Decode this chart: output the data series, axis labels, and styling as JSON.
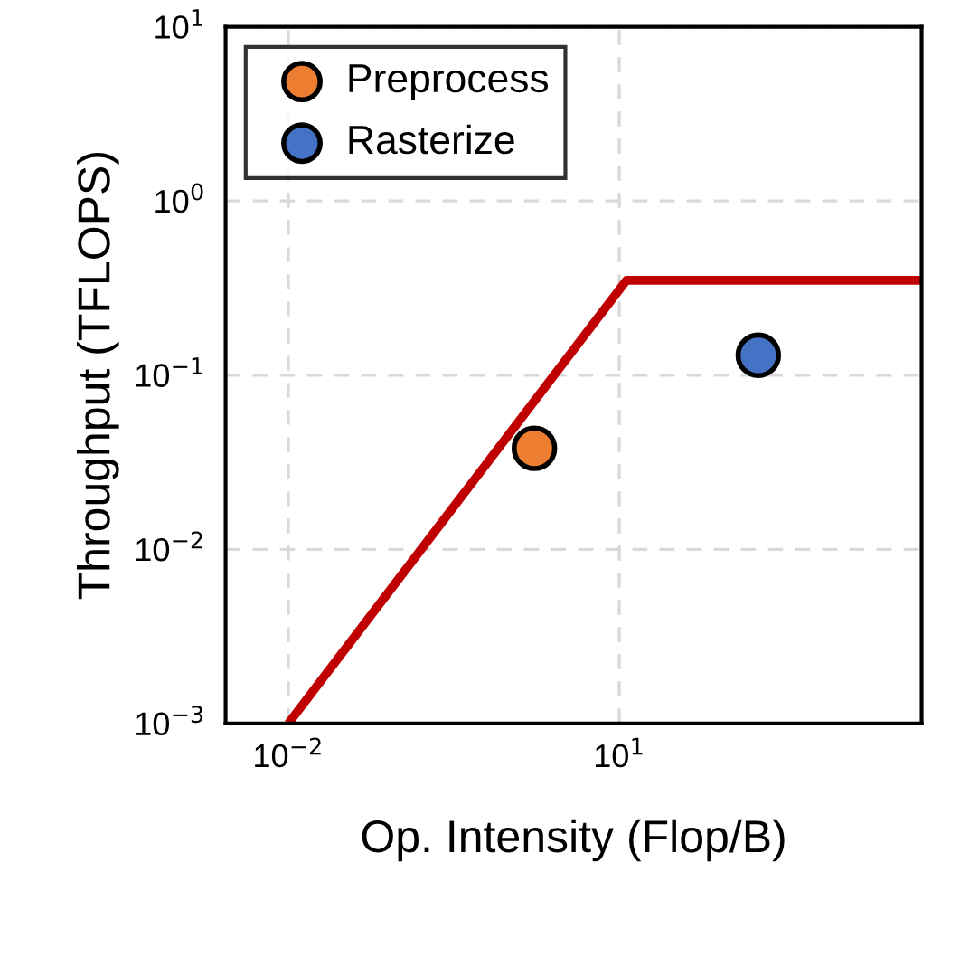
{
  "chart_data": {
    "type": "scatter",
    "xlabel": "Op. Intensity (Flop/B)",
    "ylabel": "Throughput (TFLOPS)",
    "log": "xy",
    "grid": true,
    "legend": "top left",
    "xlim": [
      0.0027,
      5500
    ],
    "ylim": [
      0.001,
      10
    ],
    "xticks": [
      {
        "value": 0.01,
        "label": "10$^{−2}$"
      },
      {
        "value": 10,
        "label": "10$^{1}$"
      }
    ],
    "yticks": [
      {
        "value": 0.001,
        "label": "10$^{−3}$"
      },
      {
        "value": 0.01,
        "label": "10$^{−2}$"
      },
      {
        "value": 0.1,
        "label": "10$^{−1}$"
      },
      {
        "value": 1,
        "label": "10$^{0}$"
      },
      {
        "value": 10,
        "label": "10$^{1}$"
      }
    ],
    "series": [
      {
        "type": "line",
        "marker": "none",
        "color": "#c00000",
        "x": [
          0.01,
          11.6,
          5500
        ],
        "values": [
          0.001,
          0.35,
          0.35
        ]
      },
      {
        "name": "Preprocess",
        "marker": "circle",
        "color": "#ed7d31",
        "x": [
          1.7
        ],
        "values": [
          0.038
        ]
      },
      {
        "name": "Rasterize",
        "marker": "circle",
        "color": "#4472c4",
        "x": [
          182
        ],
        "values": [
          0.13
        ]
      }
    ]
  }
}
